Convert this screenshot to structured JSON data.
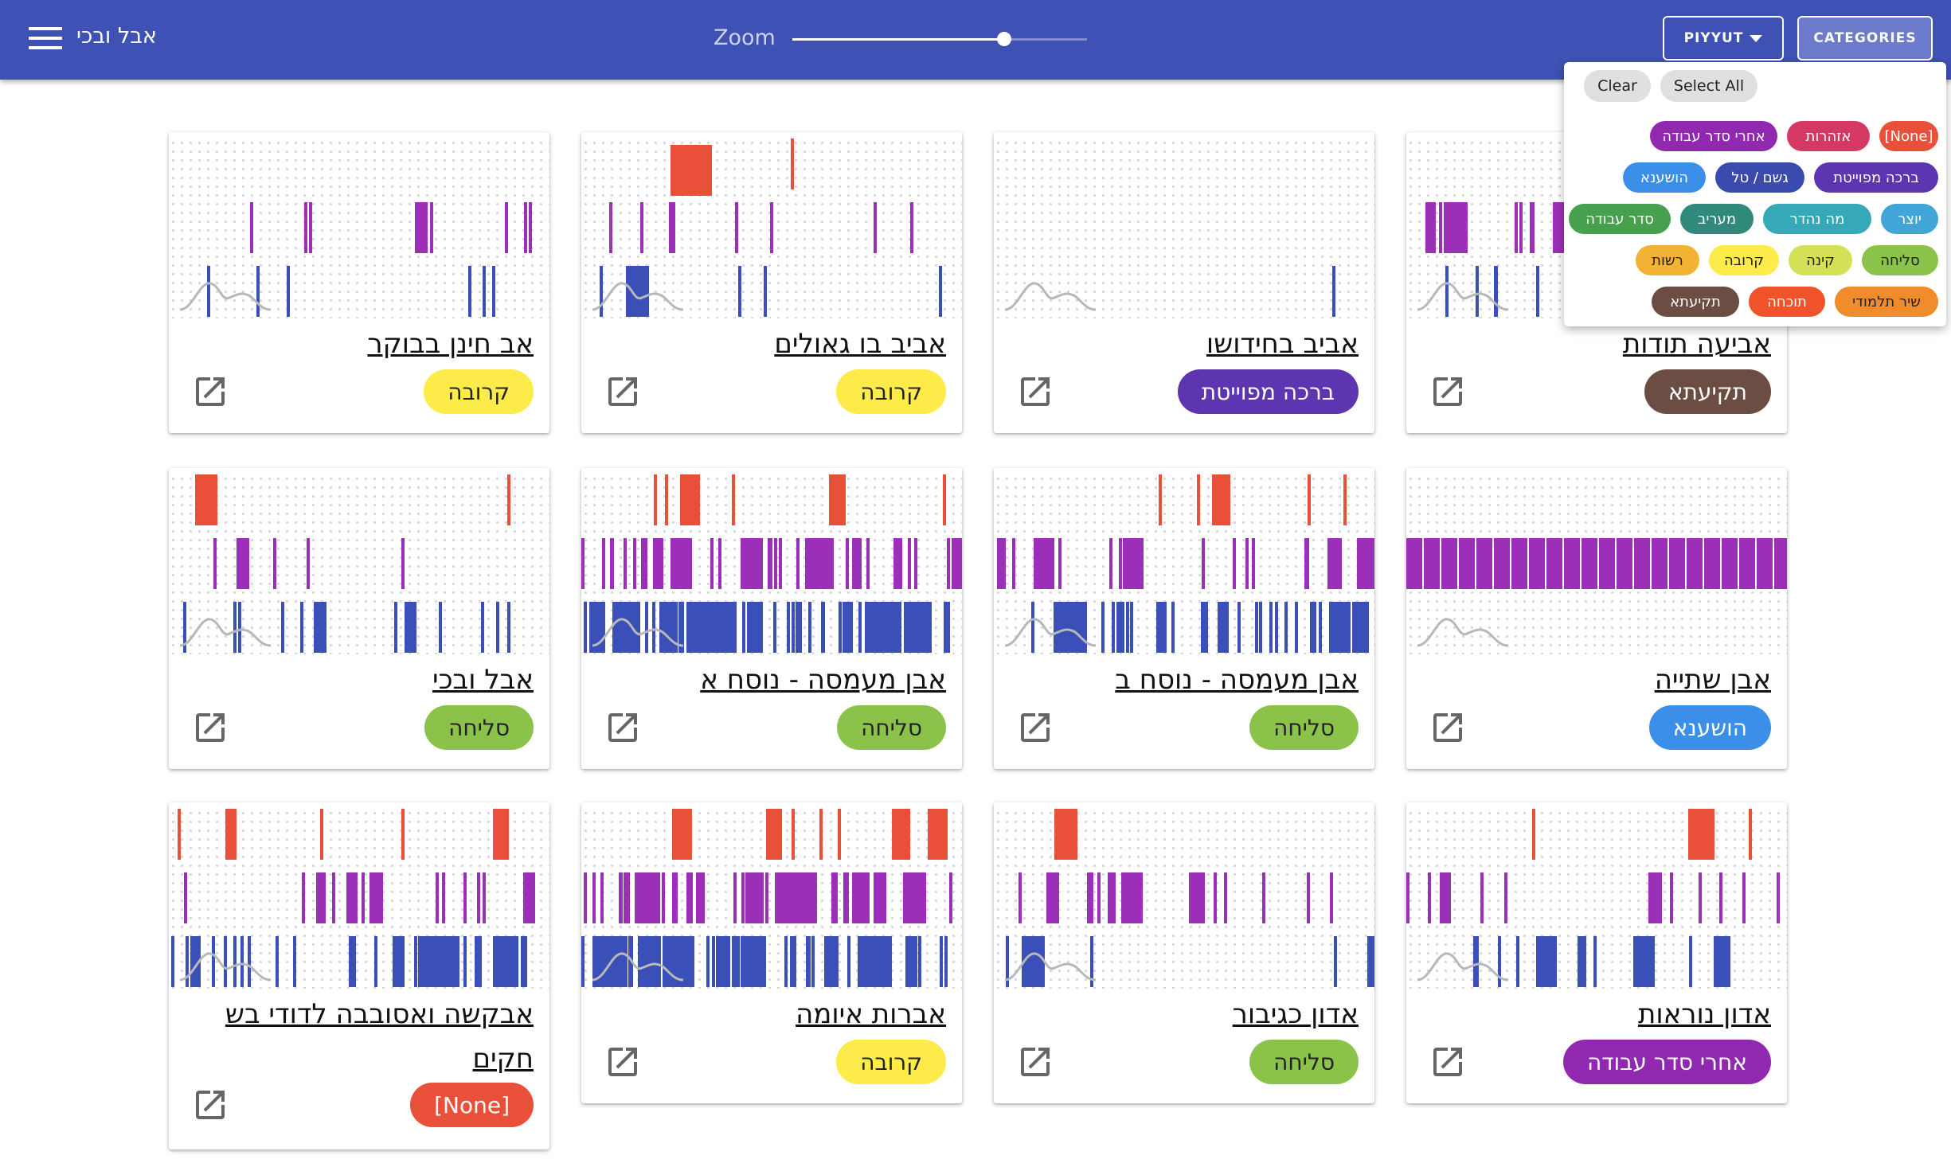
{
  "header": {
    "title": "אבל ובכי",
    "zoom_label": "Zoom",
    "zoom_value": 0.72,
    "piyyut_label": "PIYYUT",
    "categories_label": "CATEGORIES"
  },
  "cards": [
    {
      "title": "אב חינן בבוקר",
      "category": "קרובה"
    },
    {
      "title": "אביב בו גאולים",
      "category": "קרובה"
    },
    {
      "title": "אביב בחידושו",
      "category": "ברכה מפוייטת"
    },
    {
      "title": "אביעה תודות",
      "category": "תקיעתא"
    },
    {
      "title": "אבל ובכי",
      "category": "סליחה"
    },
    {
      "title": "אבן מעמסה - נוסח א",
      "category": "סליחה"
    },
    {
      "title": "אבן מעמסה - נוסח ב",
      "category": "סליחה"
    },
    {
      "title": "אבן שתייה",
      "category": "הושענא"
    },
    {
      "title": "אבקשה ואסובבה לדודי בש חקים",
      "category": "[None]"
    },
    {
      "title": "אברות איומה",
      "category": "קרובה"
    },
    {
      "title": "אדון כגיבור",
      "category": "סליחה"
    },
    {
      "title": "אדון נוראות",
      "category": "אחרי סדר עבודה"
    }
  ],
  "category_colors": {
    "[None]": "#e8503a",
    "אזהרות": "#d63864",
    "אחרי סדר עבודה": "#9028b0",
    "ברכה מפוייטת": "#5e35b1",
    "גשם / טל": "#3a4aad",
    "הושענא": "#3b8fe8",
    "יוצר": "#42a5d8",
    "מה נהדר": "#36a9b8",
    "מעריב": "#30897a",
    "סדר עבודה": "#46a04e",
    "סליחה": "#8bc34a",
    "קינה": "#d4e157",
    "קרובה": "#fdeb4a",
    "רשות": "#f2b233",
    "שיר תלמודי": "#f08c2c",
    "תוכחה": "#f0522a",
    "תקיעתא": "#6b4d44"
  },
  "dropdown": {
    "clear_label": "Clear",
    "select_all_label": "Select All",
    "chips": [
      "[None]",
      "אזהרות",
      "אחרי סדר עבודה",
      "ברכה מפוייטת",
      "גשם / טל",
      "הושענא",
      "יוצר",
      "מה נהדר",
      "מעריב",
      "סדר עבודה",
      "סליחה",
      "קינה",
      "קרובה",
      "רשות",
      "שיר תלמודי",
      "תוכחה",
      "תקיעתא"
    ]
  },
  "bar_colors": {
    "red": "#e8503a",
    "purple": "#9c2fb8",
    "blue": "#3a4fb8",
    "curve": "#b8b8b8"
  }
}
